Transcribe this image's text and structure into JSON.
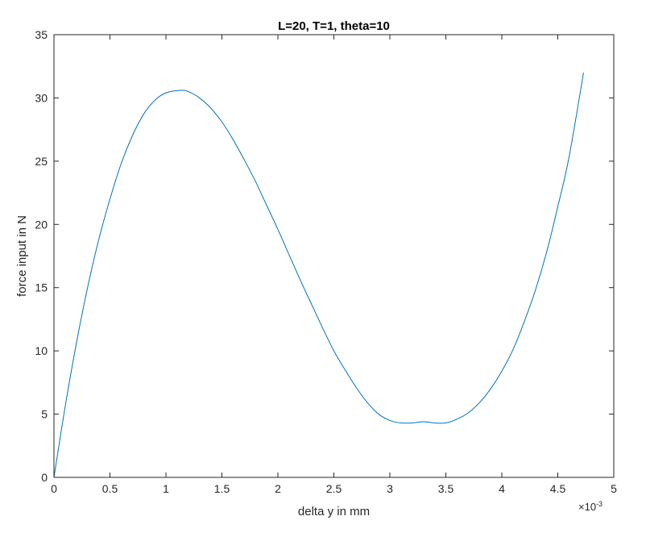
{
  "chart_data": {
    "type": "line",
    "title": "L=20, T=1, theta=10",
    "xlabel": "delta y in mm",
    "ylabel": "force input in N",
    "x_exponent_label": "×10",
    "x_exponent_power": "-3",
    "xlim": [
      0,
      0.005
    ],
    "ylim": [
      0,
      35
    ],
    "xticks": [
      0,
      0.0005,
      0.001,
      0.0015,
      0.002,
      0.0025,
      0.003,
      0.0035,
      0.004,
      0.0045,
      0.005
    ],
    "xtick_labels": [
      "0",
      "0.5",
      "1",
      "1.5",
      "2",
      "2.5",
      "3",
      "3.5",
      "4",
      "4.5",
      "5"
    ],
    "yticks": [
      0,
      5,
      10,
      15,
      20,
      25,
      30,
      35
    ],
    "ytick_labels": [
      "0",
      "5",
      "10",
      "15",
      "20",
      "25",
      "30",
      "35"
    ],
    "grid": false,
    "series": [
      {
        "color": "#0072BD",
        "x": [
          0,
          0.0001,
          0.0002,
          0.0003,
          0.0004,
          0.0005,
          0.0006,
          0.0007,
          0.0008,
          0.0009,
          0.001,
          0.00113,
          0.0012,
          0.0013,
          0.0014,
          0.0015,
          0.0016,
          0.0017,
          0.0018,
          0.0019,
          0.002,
          0.0021,
          0.0022,
          0.0023,
          0.0024,
          0.0025,
          0.0026,
          0.0027,
          0.0028,
          0.0029,
          0.003,
          0.0031,
          0.0032,
          0.0033,
          0.0034,
          0.0035,
          0.0036,
          0.0037,
          0.0038,
          0.0039,
          0.004,
          0.0041,
          0.0042,
          0.0043,
          0.0044,
          0.0045,
          0.0046,
          0.00473
        ],
        "y": [
          0,
          5.6,
          10.6,
          15.0,
          18.8,
          22.0,
          24.8,
          27.0,
          28.7,
          29.8,
          30.4,
          30.6,
          30.5,
          30.0,
          29.2,
          28.1,
          26.7,
          25.1,
          23.4,
          21.5,
          19.6,
          17.6,
          15.6,
          13.7,
          11.8,
          10.0,
          8.5,
          7.1,
          5.9,
          5.0,
          4.5,
          4.3,
          4.3,
          4.4,
          4.3,
          4.3,
          4.6,
          5.1,
          5.9,
          7.0,
          8.4,
          10.1,
          12.3,
          14.8,
          17.8,
          21.4,
          25.3,
          32.0
        ]
      }
    ]
  }
}
